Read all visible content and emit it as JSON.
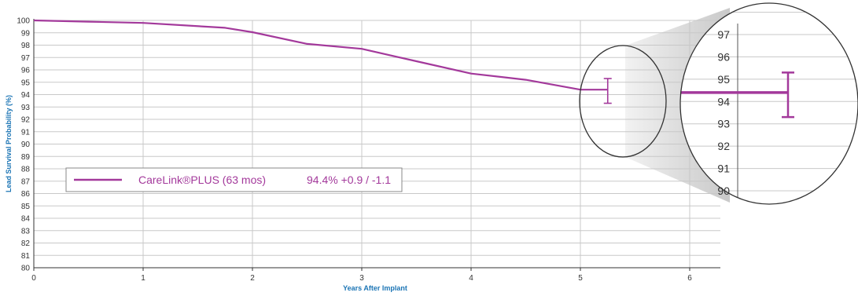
{
  "colors": {
    "series": "#a3399b",
    "axis_title": "#1c75b5",
    "grid": "#c8c8c8",
    "axis": "#333333"
  },
  "chart_data": {
    "type": "line",
    "xlabel": "Years After Implant",
    "ylabel": "Lead Survival Probability (%)",
    "xlim": [
      0,
      6.3
    ],
    "ylim": [
      80,
      100
    ],
    "x_ticks": [
      "0",
      "1",
      "2",
      "3",
      "4",
      "5",
      "6"
    ],
    "y_ticks": [
      "80",
      "81",
      "82",
      "83",
      "84",
      "85",
      "86",
      "87",
      "88",
      "89",
      "90",
      "91",
      "92",
      "93",
      "94",
      "95",
      "96",
      "97",
      "98",
      "99",
      "100"
    ],
    "grid": true,
    "legend_position": "center-left",
    "series": [
      {
        "name": "CareLink®PLUS (63 mos)",
        "x": [
          0,
          0.5,
          1.0,
          1.75,
          2.0,
          2.5,
          3.0,
          3.5,
          4.0,
          4.5,
          5.0,
          5.25
        ],
        "y": [
          100,
          99.9,
          99.8,
          99.4,
          99.05,
          98.1,
          97.7,
          96.7,
          95.7,
          95.2,
          94.4,
          94.4
        ],
        "annotation": "94.4% +0.9 / -1.1",
        "error_bar": {
          "x": 5.25,
          "value": 94.4,
          "upper": 95.3,
          "lower": 93.3
        }
      }
    ],
    "zoom_inset": {
      "y_ticks": [
        "90",
        "91",
        "92",
        "93",
        "94",
        "95",
        "96",
        "97"
      ],
      "ylim": [
        90,
        97
      ],
      "value": 94.4,
      "upper": 95.3,
      "lower": 93.3
    }
  }
}
